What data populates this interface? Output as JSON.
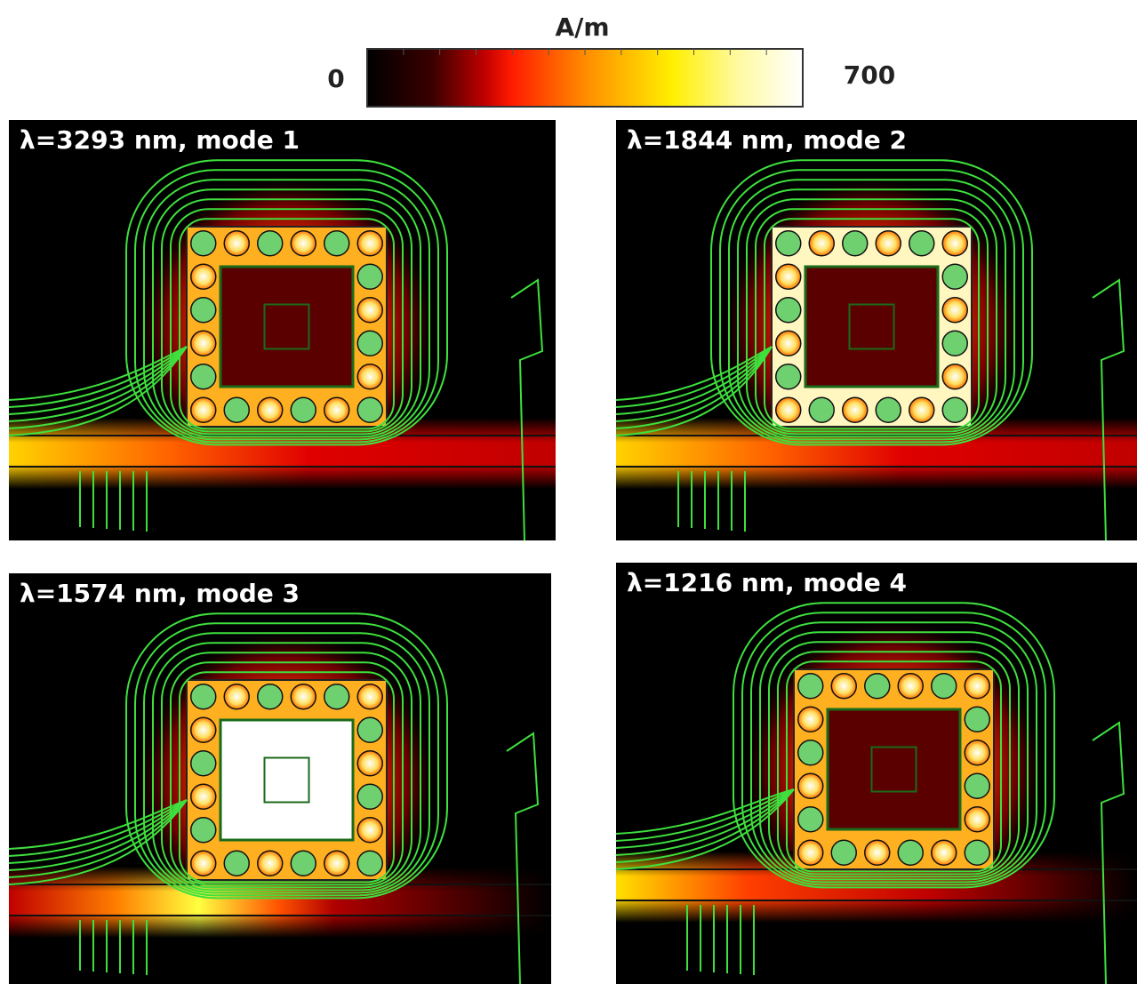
{
  "colorbar": {
    "unit": "A/m",
    "min": "0",
    "max": "700"
  },
  "panels": [
    {
      "label": "λ=3293 nm, mode 1"
    },
    {
      "label": "λ=1844 nm, mode 2"
    },
    {
      "label": "λ=1574 nm, mode 3"
    },
    {
      "label": "λ=1216 nm, mode 4"
    }
  ]
}
